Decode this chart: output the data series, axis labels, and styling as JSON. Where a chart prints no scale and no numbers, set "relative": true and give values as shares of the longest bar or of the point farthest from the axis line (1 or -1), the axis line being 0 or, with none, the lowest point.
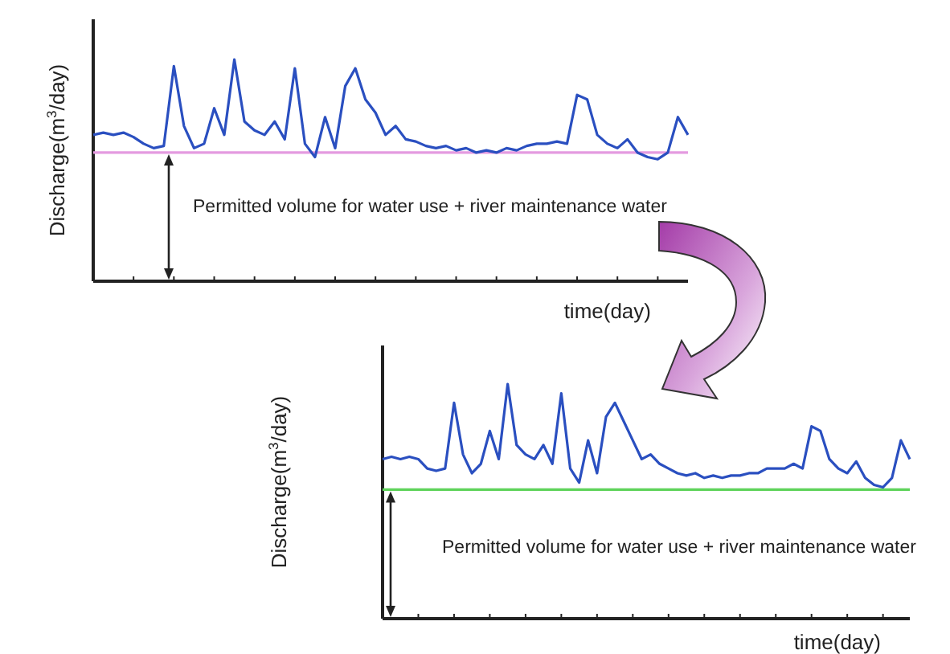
{
  "chart_data": [
    {
      "type": "line",
      "relative": true,
      "xlabel": "time(day)",
      "ylabel": "Discharge(m$^{3}$/day)",
      "categories": [
        null,
        null,
        null,
        null,
        null,
        null,
        null,
        null,
        null,
        null,
        null,
        null,
        null,
        null,
        null,
        null,
        null,
        null,
        null,
        null,
        null,
        null,
        null,
        null,
        null,
        null,
        null,
        null,
        null,
        null,
        null,
        null,
        null,
        null,
        null,
        null,
        null,
        null,
        null,
        null,
        null,
        null,
        null,
        null,
        null,
        null,
        null,
        null,
        null,
        null,
        null,
        null,
        null,
        null,
        null,
        null,
        null,
        null,
        null,
        null
      ],
      "series": [
        {
          "color": "#2a4fc0",
          "values": [
            0.66,
            0.67,
            0.66,
            0.67,
            0.65,
            0.62,
            0.6,
            0.61,
            0.97,
            0.7,
            0.6,
            0.62,
            0.78,
            0.66,
            1.0,
            0.72,
            0.68,
            0.66,
            0.72,
            0.64,
            0.96,
            0.62,
            0.56,
            0.74,
            0.6,
            0.88,
            0.96,
            0.82,
            0.76,
            0.66,
            0.7,
            0.64,
            0.63,
            0.61,
            0.6,
            0.61,
            0.59,
            0.6,
            0.58,
            0.59,
            0.58,
            0.6,
            0.59,
            0.61,
            0.62,
            0.62,
            0.63,
            0.62,
            0.84,
            0.82,
            0.66,
            0.62,
            0.6,
            0.64,
            0.58,
            0.56,
            0.55,
            0.58,
            0.74,
            0.66
          ]
        }
      ],
      "ref_lines": [
        {
          "axis": "y",
          "value": 0.58,
          "color": "#e49ae0"
        }
      ],
      "annotations": [
        "Permitted volume for water use + river maintenance water"
      ]
    },
    {
      "type": "line",
      "relative": true,
      "xlabel": "time(day)",
      "ylabel": "Discharge(m$^{3}$/day)",
      "categories": [
        null,
        null,
        null,
        null,
        null,
        null,
        null,
        null,
        null,
        null,
        null,
        null,
        null,
        null,
        null,
        null,
        null,
        null,
        null,
        null,
        null,
        null,
        null,
        null,
        null,
        null,
        null,
        null,
        null,
        null,
        null,
        null,
        null,
        null,
        null,
        null,
        null,
        null,
        null,
        null,
        null,
        null,
        null,
        null,
        null,
        null,
        null,
        null,
        null,
        null,
        null,
        null,
        null,
        null,
        null,
        null,
        null,
        null,
        null,
        null
      ],
      "series": [
        {
          "color": "#2a4fc0",
          "values": [
            0.68,
            0.69,
            0.68,
            0.69,
            0.68,
            0.64,
            0.63,
            0.64,
            0.92,
            0.7,
            0.62,
            0.66,
            0.8,
            0.68,
            1.0,
            0.74,
            0.7,
            0.68,
            0.74,
            0.66,
            0.96,
            0.64,
            0.58,
            0.76,
            0.62,
            0.86,
            0.92,
            0.84,
            0.76,
            0.68,
            0.7,
            0.66,
            0.64,
            0.62,
            0.61,
            0.62,
            0.6,
            0.61,
            0.6,
            0.61,
            0.61,
            0.62,
            0.62,
            0.64,
            0.64,
            0.64,
            0.66,
            0.64,
            0.82,
            0.8,
            0.68,
            0.64,
            0.62,
            0.67,
            0.6,
            0.57,
            0.56,
            0.6,
            0.76,
            0.68
          ]
        }
      ],
      "ref_lines": [
        {
          "axis": "y",
          "value": 0.55,
          "color": "#5ed35a"
        }
      ],
      "annotations": [
        "Permitted volume for water use + river maintenance water"
      ]
    }
  ]
}
